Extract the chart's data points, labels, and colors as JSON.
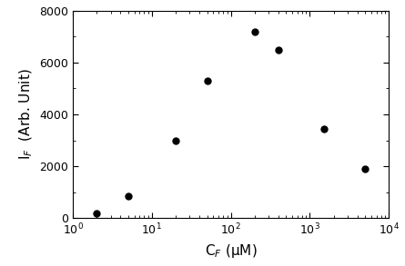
{
  "x": [
    2,
    5,
    20,
    50,
    200,
    400,
    1500,
    5000
  ],
  "y": [
    200,
    850,
    3000,
    5300,
    7200,
    6500,
    3450,
    1900
  ],
  "marker": "o",
  "marker_color": "black",
  "marker_size": 5,
  "xlabel": "C$_F$ (μM)",
  "ylabel": "I$_F$  (Arb. Unit)",
  "xlim": [
    1,
    10000
  ],
  "ylim": [
    0,
    8000
  ],
  "yticks": [
    0,
    2000,
    4000,
    6000,
    8000
  ],
  "xlabel_fontsize": 11,
  "ylabel_fontsize": 11,
  "tick_fontsize": 9,
  "background_color": "#ffffff"
}
